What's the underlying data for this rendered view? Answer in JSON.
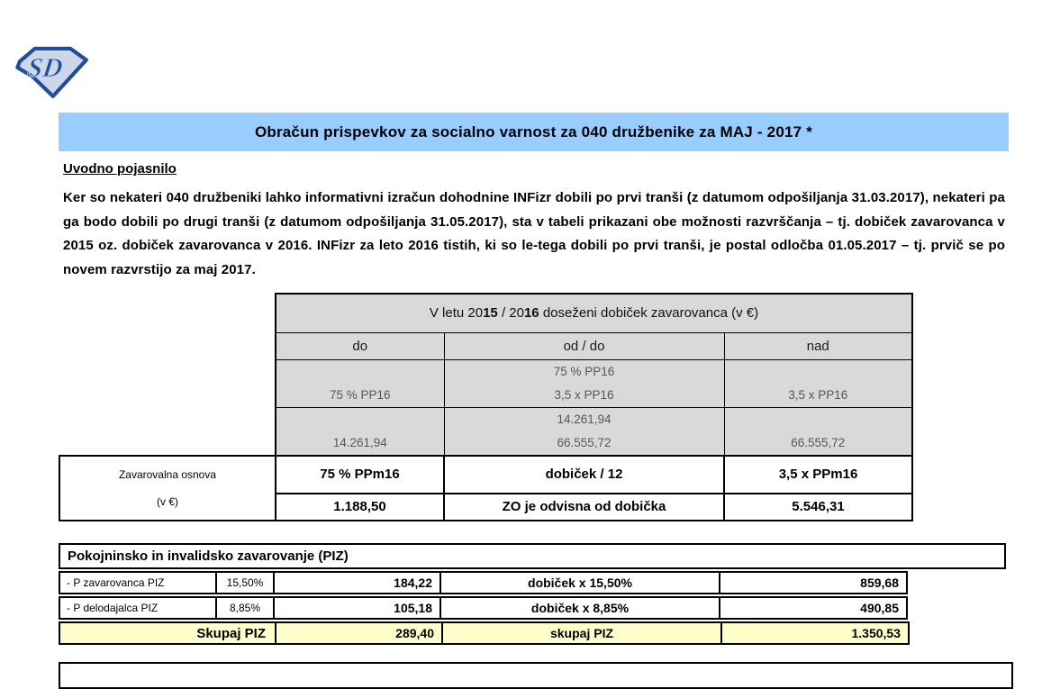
{
  "logo": {
    "text": "SD"
  },
  "title": "Obračun prispevkov za socialno varnost za 040 družbenike za MAJ - 2017 *",
  "intro": {
    "heading": "Uvodno pojasnilo",
    "paragraph": "Ker so nekateri 040 družbeniki lahko informativni izračun dohodnine INFizr dobili po prvi tranši (z datumom odpošiljanja 31.03.2017), nekateri pa ga bodo dobili po drugi tranši (z datumom odpošiljanja 31.05.2017), sta v tabeli prikazani obe možnosti razvrščanja – tj. dobiček zavarovanca v 2015 oz. dobiček zavarovanca v 2016. INFizr za leto 2016 tistih, ki so le-tega dobili po prvi tranši, je postal odločba 01.05.2017 – tj. prvič se po novem razvrstijo za maj 2017."
  },
  "profit_table": {
    "header_parts": [
      {
        "t": "V letu 20",
        "b": 0
      },
      {
        "t": "15",
        "b": 1
      },
      {
        "t": " / 20",
        "b": 0
      },
      {
        "t": "16",
        "b": 1
      },
      {
        "t": " doseženi dobiček zavarovanca (v €)",
        "b": 0
      }
    ],
    "col_headers": [
      "do",
      "od / do",
      "nad"
    ],
    "pp_row": {
      "do": "75 % PP16",
      "od_do": [
        "75 % PP16",
        "3,5 x PP16"
      ],
      "nad": "3,5 x PP16"
    },
    "amount_row": {
      "do": "14.261,94",
      "od_do": [
        "14.261,94",
        "66.555,72"
      ],
      "nad": "66.555,72"
    },
    "base_label": [
      "Zavarovalna osnova",
      "(v €)"
    ],
    "base_row": [
      "75 % PPm16",
      "dobiček / 12",
      "3,5 x PPm16"
    ],
    "base_values": [
      "1.188,50",
      "ZO je odvisna od dobička",
      "5.546,31"
    ]
  },
  "piz_table": {
    "header": "Pokojninsko in invalidsko zavarovanje (PIZ)",
    "rows": [
      {
        "label": "- P zavarovanca PIZ",
        "rate": "15,50%",
        "amount": "184,22",
        "formula": "dobiček x 15,50%",
        "amount2": "859,68"
      },
      {
        "label": "- P delodajalca PIZ",
        "rate": "8,85%",
        "amount": "105,18",
        "formula": "dobiček x 8,85%",
        "amount2": "490,85"
      }
    ],
    "total": {
      "label": "Skupaj  PIZ",
      "amount": "289,40",
      "formula": "skupaj PIZ",
      "amount2": "1.350,53"
    }
  },
  "colors": {
    "title_bar": "#99CCFF",
    "table_gray": "#D9D9D9",
    "total_yellow": "#FFFFCC",
    "logo_blue": "#1f4e9c"
  }
}
